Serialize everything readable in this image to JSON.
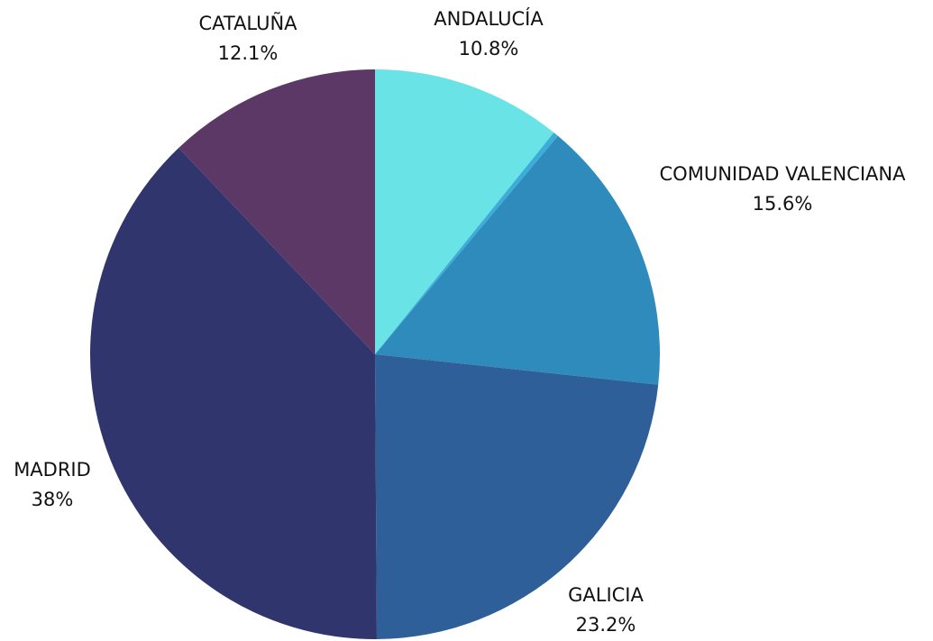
{
  "chart_data": {
    "type": "pie",
    "categories": [
      "ANDALUCÍA",
      null,
      "COMUNIDAD VALENCIANA",
      "GALICIA",
      "MADRID",
      "CATALUÑA"
    ],
    "values": [
      10.8,
      0.3,
      15.6,
      23.2,
      38,
      12.1
    ],
    "value_labels": [
      "10.8%",
      null,
      "15.6%",
      "23.2%",
      "38%",
      "12.1%"
    ],
    "colors": [
      "#6ae3e7",
      "#3aaed8",
      "#2e8bbb",
      "#2e5f99",
      "#30356d",
      "#5c3866"
    ]
  }
}
